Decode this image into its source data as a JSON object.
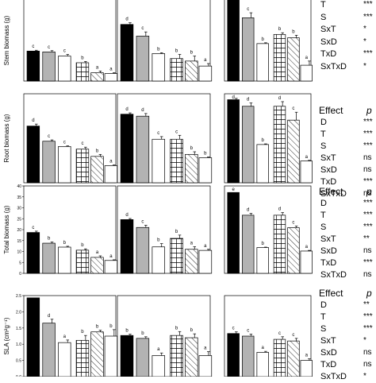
{
  "colors": {
    "black": "#000000",
    "grey": "#b3b3b3",
    "white": "#ffffff",
    "ink": "#000000"
  },
  "chart_data": [
    {
      "type": "bar",
      "ylabel": "Stem biomass (g)",
      "ylim": [
        0,
        10.5
      ],
      "yticks": [],
      "groups": [
        {
          "bars": [
            {
              "pattern": "black",
              "value": 3.6,
              "err": 0.1,
              "letter": "c"
            },
            {
              "pattern": "grey",
              "value": 3.5,
              "err": 0.15,
              "letter": "c"
            },
            {
              "pattern": "white",
              "value": 3.0,
              "err": 0.2,
              "letter": "c"
            },
            {
              "pattern": "grid",
              "value": 2.2,
              "err": 0.15,
              "letter": "b"
            },
            {
              "pattern": "hatch",
              "value": 1.0,
              "err": 0.2,
              "letter": "a"
            },
            {
              "pattern": "white",
              "value": 0.9,
              "err": 0.1,
              "letter": "a"
            }
          ]
        },
        {
          "bars": [
            {
              "pattern": "black",
              "value": 6.8,
              "err": 0.2,
              "letter": "d"
            },
            {
              "pattern": "grey",
              "value": 5.4,
              "err": 0.5,
              "letter": "c"
            },
            {
              "pattern": "white",
              "value": 3.3,
              "err": 0.1,
              "letter": "b"
            },
            {
              "pattern": "grid",
              "value": 2.7,
              "err": 0.5,
              "letter": "b"
            },
            {
              "pattern": "hatch",
              "value": 2.4,
              "err": 0.6,
              "letter": "b"
            },
            {
              "pattern": "white",
              "value": 1.8,
              "err": 0.3,
              "letter": "a"
            }
          ]
        },
        {
          "bars": [
            {
              "pattern": "black",
              "value": 10.5,
              "err": 0,
              "letter": ""
            },
            {
              "pattern": "grey",
              "value": 7.6,
              "err": 0.6,
              "letter": "c"
            },
            {
              "pattern": "white",
              "value": 4.5,
              "err": 0.1,
              "letter": "b"
            },
            {
              "pattern": "grid",
              "value": 5.6,
              "err": 0.2,
              "letter": "b"
            },
            {
              "pattern": "hatch",
              "value": 5.2,
              "err": 0.3,
              "letter": "b"
            },
            {
              "pattern": "white",
              "value": 1.9,
              "err": 0.5,
              "letter": "a"
            }
          ]
        }
      ],
      "stats": {
        "show_header": false,
        "rows": [
          {
            "effect": "T",
            "p": "***"
          },
          {
            "effect": "S",
            "p": "***"
          },
          {
            "effect": "SxT",
            "p": "*"
          },
          {
            "effect": "SxD",
            "p": "*"
          },
          {
            "effect": "TxD",
            "p": "***"
          },
          {
            "effect": "SxTxD",
            "p": "*"
          }
        ]
      }
    },
    {
      "type": "bar",
      "ylabel": "Root biomass (g)",
      "ylim": [
        0,
        13.5
      ],
      "yticks": [],
      "groups": [
        {
          "bars": [
            {
              "pattern": "black",
              "value": 8.6,
              "err": 0.3,
              "letter": "d"
            },
            {
              "pattern": "grey",
              "value": 6.3,
              "err": 0.2,
              "letter": "c"
            },
            {
              "pattern": "white",
              "value": 5.5,
              "err": 0.1,
              "letter": "c"
            },
            {
              "pattern": "grid",
              "value": 5.1,
              "err": 0.3,
              "letter": "c"
            },
            {
              "pattern": "hatch",
              "value": 4.0,
              "err": 0.3,
              "letter": "b"
            },
            {
              "pattern": "white",
              "value": 2.6,
              "err": 0.1,
              "letter": "a"
            }
          ]
        },
        {
          "bars": [
            {
              "pattern": "black",
              "value": 10.4,
              "err": 0.2,
              "letter": "d"
            },
            {
              "pattern": "grey",
              "value": 10.1,
              "err": 0.4,
              "letter": "d"
            },
            {
              "pattern": "white",
              "value": 6.6,
              "err": 0.4,
              "letter": "c"
            },
            {
              "pattern": "grid",
              "value": 6.6,
              "err": 0.6,
              "letter": "c"
            },
            {
              "pattern": "hatch",
              "value": 4.3,
              "err": 0.4,
              "letter": "b"
            },
            {
              "pattern": "white",
              "value": 3.8,
              "err": 0.1,
              "letter": "b"
            }
          ]
        },
        {
          "bars": [
            {
              "pattern": "black",
              "value": 12.6,
              "err": 0.2,
              "letter": "d"
            },
            {
              "pattern": "grey",
              "value": 11.6,
              "err": 0.5,
              "letter": "d"
            },
            {
              "pattern": "white",
              "value": 5.8,
              "err": 0.1,
              "letter": "b"
            },
            {
              "pattern": "grid",
              "value": 11.6,
              "err": 0.7,
              "letter": "d"
            },
            {
              "pattern": "hatch",
              "value": 9.5,
              "err": 1.2,
              "letter": "c"
            },
            {
              "pattern": "white",
              "value": 3.3,
              "err": 0.1,
              "letter": "a"
            }
          ]
        }
      ],
      "stats": {
        "show_header": true,
        "header_effect": "Effect",
        "header_p": "p",
        "rows": [
          {
            "effect": "D",
            "p": "***"
          },
          {
            "effect": "T",
            "p": "***"
          },
          {
            "effect": "S",
            "p": "***"
          },
          {
            "effect": "SxT",
            "p": "ns"
          },
          {
            "effect": "SxD",
            "p": "ns"
          },
          {
            "effect": "TxD",
            "p": "***"
          },
          {
            "effect": "SxTxD",
            "p": "ns"
          }
        ]
      }
    },
    {
      "type": "bar",
      "ylabel": "Total biomass (g)",
      "ylim": [
        0,
        40
      ],
      "yticks": [
        0,
        5,
        10,
        15,
        20,
        25,
        30,
        35,
        40
      ],
      "groups": [
        {
          "bars": [
            {
              "pattern": "black",
              "value": 18.7,
              "err": 0.6,
              "letter": "c"
            },
            {
              "pattern": "grey",
              "value": 13.8,
              "err": 0.5,
              "letter": "b"
            },
            {
              "pattern": "white",
              "value": 12.0,
              "err": 0.4,
              "letter": "b"
            },
            {
              "pattern": "grid",
              "value": 10.6,
              "err": 0.6,
              "letter": "b"
            },
            {
              "pattern": "hatch",
              "value": 7.3,
              "err": 0.7,
              "letter": "a"
            },
            {
              "pattern": "white",
              "value": 5.9,
              "err": 0.3,
              "letter": "a"
            }
          ]
        },
        {
          "bars": [
            {
              "pattern": "black",
              "value": 24.6,
              "err": 0.5,
              "letter": "d"
            },
            {
              "pattern": "grey",
              "value": 21.0,
              "err": 1.0,
              "letter": "c"
            },
            {
              "pattern": "white",
              "value": 12.1,
              "err": 1.5,
              "letter": "b"
            },
            {
              "pattern": "grid",
              "value": 16.0,
              "err": 1.5,
              "letter": "b"
            },
            {
              "pattern": "hatch",
              "value": 11.0,
              "err": 1.2,
              "letter": "a"
            },
            {
              "pattern": "white",
              "value": 10.5,
              "err": 0.5,
              "letter": "a"
            }
          ]
        },
        {
          "bars": [
            {
              "pattern": "black",
              "value": 37.0,
              "err": 0,
              "letter": "e"
            },
            {
              "pattern": "grey",
              "value": 26.6,
              "err": 0.8,
              "letter": "d"
            },
            {
              "pattern": "white",
              "value": 11.8,
              "err": 0.2,
              "letter": "b"
            },
            {
              "pattern": "grid",
              "value": 26.6,
              "err": 1.2,
              "letter": "d"
            },
            {
              "pattern": "hatch",
              "value": 20.9,
              "err": 0.7,
              "letter": "c"
            },
            {
              "pattern": "white",
              "value": 10.2,
              "err": 0.3,
              "letter": "a"
            }
          ]
        }
      ],
      "stats": {
        "show_header": true,
        "header_effect": "Effect",
        "header_p": "p",
        "rows": [
          {
            "effect": "D",
            "p": "***"
          },
          {
            "effect": "T",
            "p": "***"
          },
          {
            "effect": "S",
            "p": "***"
          },
          {
            "effect": "SxT",
            "p": "**"
          },
          {
            "effect": "SxD",
            "p": "ns"
          },
          {
            "effect": "TxD",
            "p": "***"
          },
          {
            "effect": "SxTxD",
            "p": "ns"
          }
        ]
      }
    },
    {
      "type": "bar",
      "ylabel": "SLA (cm²g⁻¹)",
      "ylim": [
        0,
        2.5
      ],
      "yticks": [
        0.0,
        0.5,
        1.0,
        1.5,
        2.0,
        2.5
      ],
      "groups": [
        {
          "bars": [
            {
              "pattern": "black",
              "value": 2.43,
              "err": 0,
              "letter": "e"
            },
            {
              "pattern": "grey",
              "value": 1.65,
              "err": 0.12,
              "letter": "d"
            },
            {
              "pattern": "white",
              "value": 1.05,
              "err": 0.08,
              "letter": "a"
            },
            {
              "pattern": "grid",
              "value": 1.12,
              "err": 0.15,
              "letter": "b"
            },
            {
              "pattern": "hatch",
              "value": 1.38,
              "err": 0.05,
              "letter": "b"
            },
            {
              "pattern": "white",
              "value": 1.25,
              "err": 0.2,
              "letter": "b"
            }
          ]
        },
        {
          "bars": [
            {
              "pattern": "black",
              "value": 1.27,
              "err": 0.04,
              "letter": "b"
            },
            {
              "pattern": "grey",
              "value": 1.18,
              "err": 0.05,
              "letter": "b"
            },
            {
              "pattern": "white",
              "value": 0.65,
              "err": 0.08,
              "letter": "a"
            },
            {
              "pattern": "grid",
              "value": 1.27,
              "err": 0.12,
              "letter": "b"
            },
            {
              "pattern": "hatch",
              "value": 1.2,
              "err": 0.12,
              "letter": "b"
            },
            {
              "pattern": "white",
              "value": 0.65,
              "err": 0.12,
              "letter": "a"
            }
          ]
        },
        {
          "bars": [
            {
              "pattern": "black",
              "value": 1.33,
              "err": 0.05,
              "letter": "c"
            },
            {
              "pattern": "grey",
              "value": 1.25,
              "err": 0.06,
              "letter": "c"
            },
            {
              "pattern": "white",
              "value": 0.75,
              "err": 0.03,
              "letter": "a"
            },
            {
              "pattern": "grid",
              "value": 1.15,
              "err": 0.08,
              "letter": "c"
            },
            {
              "pattern": "hatch",
              "value": 1.1,
              "err": 0.08,
              "letter": "c"
            },
            {
              "pattern": "white",
              "value": 0.5,
              "err": 0.05,
              "letter": "a"
            }
          ]
        }
      ],
      "stats": {
        "show_header": true,
        "header_effect": "Effect",
        "header_p": "p",
        "rows": [
          {
            "effect": "D",
            "p": "**"
          },
          {
            "effect": "T",
            "p": "***"
          },
          {
            "effect": "S",
            "p": "***"
          },
          {
            "effect": "SxT",
            "p": "*"
          },
          {
            "effect": "SxD",
            "p": "ns"
          },
          {
            "effect": "TxD",
            "p": "ns"
          },
          {
            "effect": "SxTxD",
            "p": "*"
          }
        ]
      }
    }
  ]
}
